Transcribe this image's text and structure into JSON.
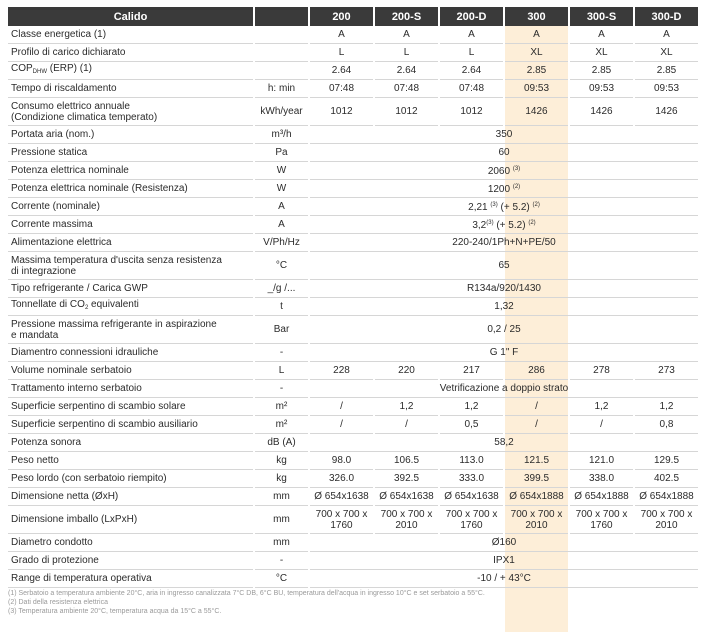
{
  "colors": {
    "header_bg": "#3a3a3a",
    "highlight": "#fdeed8"
  },
  "highlight_model": "300",
  "header": {
    "title": "Calido",
    "unit": "",
    "models": [
      "200",
      "200-S",
      "200-D",
      "300",
      "300-S",
      "300-D"
    ]
  },
  "rows": [
    {
      "label": [
        {
          "t": "Classe energetica (1)"
        }
      ],
      "unit": "",
      "values": [
        "A",
        "A",
        "A",
        "A",
        "A",
        "A"
      ]
    },
    {
      "label": [
        {
          "t": "Profilo di carico dichiarato"
        }
      ],
      "unit": "",
      "values": [
        "L",
        "L",
        "L",
        "XL",
        "XL",
        "XL"
      ]
    },
    {
      "label": [
        {
          "t": "COP"
        },
        {
          "sub": "DHW"
        },
        {
          "t": " (ERP) (1)"
        }
      ],
      "unit": "",
      "values": [
        "2.64",
        "2.64",
        "2.64",
        "2.85",
        "2.85",
        "2.85"
      ]
    },
    {
      "label": [
        {
          "t": "Tempo di riscaldamento"
        }
      ],
      "unit": "h: min",
      "values": [
        "07:48",
        "07:48",
        "07:48",
        "09:53",
        "09:53",
        "09:53"
      ]
    },
    {
      "label": [
        {
          "t": "Consumo elettrico annuale"
        },
        {
          "br": true
        },
        {
          "t": "(Condizione climatica temperato)"
        }
      ],
      "unit": "kWh/year",
      "tall": true,
      "values": [
        "1012",
        "1012",
        "1012",
        "1426",
        "1426",
        "1426"
      ]
    },
    {
      "label": [
        {
          "t": "Portata aria  (nom.)"
        }
      ],
      "unit": "m³/h",
      "merged": [
        {
          "t": "350"
        }
      ]
    },
    {
      "label": [
        {
          "t": "Pressione statica"
        }
      ],
      "unit": "Pa",
      "merged": [
        {
          "t": "60"
        }
      ]
    },
    {
      "label": [
        {
          "t": "Potenza elettrica nominale"
        }
      ],
      "unit": "W",
      "merged": [
        {
          "t": "2060 "
        },
        {
          "sup": "(3)"
        }
      ]
    },
    {
      "label": [
        {
          "t": "Potenza elettrica nominale (Resistenza)"
        }
      ],
      "unit": "W",
      "merged": [
        {
          "t": "1200 "
        },
        {
          "sup": "(2)"
        }
      ]
    },
    {
      "label": [
        {
          "t": "Corrente (nominale)"
        }
      ],
      "unit": "A",
      "merged": [
        {
          "t": "2,21 "
        },
        {
          "sup": "(3)"
        },
        {
          "t": " (+ 5.2) "
        },
        {
          "sup": "(2)"
        }
      ]
    },
    {
      "label": [
        {
          "t": "Corrente massima"
        }
      ],
      "unit": "A",
      "merged": [
        {
          "t": "3,2"
        },
        {
          "sup": "(3)"
        },
        {
          "t": " (+ 5.2) "
        },
        {
          "sup": "(2)"
        }
      ]
    },
    {
      "label": [
        {
          "t": "Alimentazione elettrica"
        }
      ],
      "unit": "V/Ph/Hz",
      "merged": [
        {
          "t": "220-240/1Ph+N+PE/50"
        }
      ]
    },
    {
      "label": [
        {
          "t": "Massima temperatura d'uscita senza resistenza"
        },
        {
          "br": true
        },
        {
          "t": "di integrazione"
        }
      ],
      "unit": "°C",
      "tall": true,
      "merged": [
        {
          "t": "65"
        }
      ]
    },
    {
      "label": [
        {
          "t": "Tipo refrigerante / Carica GWP"
        }
      ],
      "unit": "_/g /...",
      "merged": [
        {
          "t": "R134a/920/1430"
        }
      ]
    },
    {
      "label": [
        {
          "t": "Tonnellate di CO"
        },
        {
          "sub": "2"
        },
        {
          "t": " equivalenti"
        }
      ],
      "unit": "t",
      "merged": [
        {
          "t": "1,32"
        }
      ]
    },
    {
      "label": [
        {
          "t": "Pressione massima refrigerante in aspirazione"
        },
        {
          "br": true
        },
        {
          "t": "e mandata"
        }
      ],
      "unit": "Bar",
      "tall": true,
      "merged": [
        {
          "t": "0,2 / 25"
        }
      ]
    },
    {
      "label": [
        {
          "t": "Diamentro connessioni idrauliche"
        }
      ],
      "unit": "-",
      "merged": [
        {
          "t": "G 1\" F"
        }
      ]
    },
    {
      "label": [
        {
          "t": "Volume nominale serbatoio"
        }
      ],
      "unit": "L",
      "values": [
        "228",
        "220",
        "217",
        "286",
        "278",
        "273"
      ]
    },
    {
      "label": [
        {
          "t": "Trattamento interno serbatoio"
        }
      ],
      "unit": "-",
      "merged": [
        {
          "t": "Vetrificazione a doppio strato"
        }
      ]
    },
    {
      "label": [
        {
          "t": "Superficie serpentino di scambio solare"
        }
      ],
      "unit": "m²",
      "values": [
        "/",
        "1,2",
        "1,2",
        "/",
        "1,2",
        "1,2"
      ]
    },
    {
      "label": [
        {
          "t": "Superficie serpentino di scambio ausiliario"
        }
      ],
      "unit": "m²",
      "values": [
        "/",
        "/",
        "0,5",
        "/",
        "/",
        "0,8"
      ]
    },
    {
      "label": [
        {
          "t": "Potenza sonora"
        }
      ],
      "unit": "dB (A)",
      "merged": [
        {
          "t": "58,2"
        }
      ]
    },
    {
      "label": [
        {
          "t": "Peso netto"
        }
      ],
      "unit": "kg",
      "values": [
        "98.0",
        "106.5",
        "113.0",
        "121.5",
        "121.0",
        "129.5"
      ]
    },
    {
      "label": [
        {
          "t": "Peso lordo (con serbatoio riempito)"
        }
      ],
      "unit": "kg",
      "values": [
        "326.0",
        "392.5",
        "333.0",
        "399.5",
        "338.0",
        "402.5"
      ]
    },
    {
      "label": [
        {
          "t": "Dimensione netta (ØxH)"
        }
      ],
      "unit": "mm",
      "values": [
        "Ø 654x1638",
        "Ø 654x1638",
        "Ø 654x1638",
        "Ø 654x1888",
        "Ø 654x1888",
        "Ø 654x1888"
      ]
    },
    {
      "label": [
        {
          "t": "Dimensione imballo (LxPxH)"
        }
      ],
      "unit": "mm",
      "tall": true,
      "values": [
        "700 x 700 x 1760",
        "700 x 700 x 2010",
        "700 x 700 x 1760",
        "700 x 700 x 2010",
        "700 x 700 x 1760",
        "700 x 700 x 2010"
      ]
    },
    {
      "label": [
        {
          "t": "Diametro condotto"
        }
      ],
      "unit": "mm",
      "merged": [
        {
          "t": "Ø160"
        }
      ]
    },
    {
      "label": [
        {
          "t": "Grado di protezione"
        }
      ],
      "unit": "-",
      "merged": [
        {
          "t": "IPX1"
        }
      ]
    },
    {
      "label": [
        {
          "t": "Range di temperatura operativa"
        }
      ],
      "unit": "°C",
      "merged": [
        {
          "t": "-10 / + 43°C"
        }
      ]
    }
  ],
  "footnotes": [
    "(1) Serbatoio a temperatura ambiente 20°C, aria in ingresso canalizzata 7°C DB, 6°C BU, temperatura dell'acqua in ingresso 10°C e set serbatoio a 55°C.",
    "(2) Dati della resistenza elettrica",
    "(3) Temperatura ambiente 20°C, temperatura acqua da 15°C a 55°C."
  ]
}
